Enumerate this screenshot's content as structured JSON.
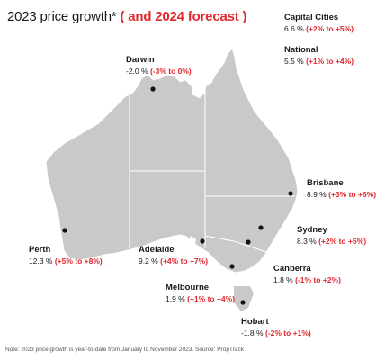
{
  "title": {
    "main": "2023 price growth*",
    "forecast": " ( and 2024 forecast )"
  },
  "colors": {
    "land": "#c9c9c9",
    "border": "#ffffff",
    "accent": "#e0282e",
    "marker": "#111111"
  },
  "cities": {
    "capital": {
      "name": "Capital Cities",
      "value": "6.6 %",
      "forecast": "(+2% to +5%)"
    },
    "national": {
      "name": "National",
      "value": "5.5 %",
      "forecast": "(+1% to +4%)"
    },
    "darwin": {
      "name": "Darwin",
      "value": "-2.0 %",
      "forecast": "(-3% to 0%)"
    },
    "brisbane": {
      "name": "Brisbane",
      "value": "8.9 %",
      "forecast": "(+3% to +6%)"
    },
    "sydney": {
      "name": "Sydney",
      "value": "8.3 %",
      "forecast": "(+2% to +5%)"
    },
    "canberra": {
      "name": "Canberra",
      "value": "1.8 %",
      "forecast": "(-1% to +2%)"
    },
    "perth": {
      "name": "Perth",
      "value": "12.3 %",
      "forecast": "(+5% to +8%)"
    },
    "adelaide": {
      "name": "Adelaide",
      "value": "9.2 %",
      "forecast": "(+4% to +7%)"
    },
    "melbourne": {
      "name": "Melbourne",
      "value": "1.9 %",
      "forecast": "(+1% to +4%)"
    },
    "hobart": {
      "name": "Hobart",
      "value": "-1.8 %",
      "forecast": "(-2% to +1%)"
    }
  },
  "note": "Note: 2023 price growth is year-to-date from January to November 2023. Source: PropTrack"
}
